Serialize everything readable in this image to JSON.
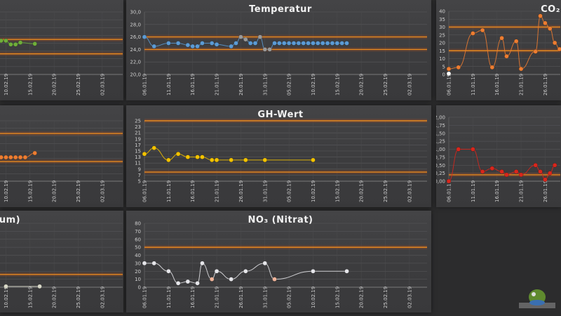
{
  "x_axis": {
    "start": "06.01.19",
    "ticks": [
      "06.01.19",
      "11.01.19",
      "16.01.19",
      "21.01.19",
      "26.01.19",
      "31.01.19",
      "05.02.19",
      "10.02.19",
      "15.02.19",
      "20.02.19",
      "25.02.19",
      "02.03.19"
    ]
  },
  "threshold_color": "#e8891f",
  "chart_data": [
    {
      "id": "left-top",
      "type": "line",
      "title": "",
      "color": "#6fae3a",
      "ylim": [
        20,
        30
      ],
      "thresholds": [
        25.6,
        23.3
      ],
      "points": [
        {
          "x": "09.02.19",
          "y": 25.4
        },
        {
          "x": "10.02.19",
          "y": 25.4
        },
        {
          "x": "11.02.19",
          "y": 24.8
        },
        {
          "x": "12.02.19",
          "y": 24.8
        },
        {
          "x": "13.02.19",
          "y": 25.1
        },
        {
          "x": "16.02.19",
          "y": 24.9
        }
      ]
    },
    {
      "id": "temperatur",
      "type": "line",
      "title": "Temperatur",
      "color": "#5b9bd5",
      "ylim": [
        20,
        30
      ],
      "ystep": 2,
      "decimals": 1,
      "thresholds": [
        26,
        24
      ],
      "points": [
        {
          "x": "06.01.19",
          "y": 26
        },
        {
          "x": "08.01.19",
          "y": 24.5
        },
        {
          "x": "11.01.19",
          "y": 25
        },
        {
          "x": "13.01.19",
          "y": 25
        },
        {
          "x": "15.01.19",
          "y": 24.7
        },
        {
          "x": "16.01.19",
          "y": 24.5
        },
        {
          "x": "17.01.19",
          "y": 24.5
        },
        {
          "x": "18.01.19",
          "y": 25
        },
        {
          "x": "20.01.19",
          "y": 25
        },
        {
          "x": "21.01.19",
          "y": 24.8
        },
        {
          "x": "24.01.19",
          "y": 24.5
        },
        {
          "x": "25.01.19",
          "y": 25
        },
        {
          "x": "26.01.19",
          "y": 26,
          "c": "#9a9a9a"
        },
        {
          "x": "27.01.19",
          "y": 25.6,
          "c": "#9a9a9a"
        },
        {
          "x": "28.01.19",
          "y": 25
        },
        {
          "x": "29.01.19",
          "y": 25
        },
        {
          "x": "30.01.19",
          "y": 26,
          "c": "#9a9a9a"
        },
        {
          "x": "31.01.19",
          "y": 24,
          "c": "#9a9a9a"
        },
        {
          "x": "01.02.19",
          "y": 24,
          "c": "#9a9a9a"
        },
        {
          "x": "02.02.19",
          "y": 25
        },
        {
          "x": "03.02.19",
          "y": 25
        },
        {
          "x": "04.02.19",
          "y": 25
        },
        {
          "x": "05.02.19",
          "y": 25
        },
        {
          "x": "06.02.19",
          "y": 25
        },
        {
          "x": "07.02.19",
          "y": 25
        },
        {
          "x": "08.02.19",
          "y": 25
        },
        {
          "x": "09.02.19",
          "y": 25
        },
        {
          "x": "10.02.19",
          "y": 25
        },
        {
          "x": "11.02.19",
          "y": 25
        },
        {
          "x": "12.02.19",
          "y": 25
        },
        {
          "x": "13.02.19",
          "y": 25
        },
        {
          "x": "14.02.19",
          "y": 25
        },
        {
          "x": "15.02.19",
          "y": 25
        },
        {
          "x": "16.02.19",
          "y": 25
        },
        {
          "x": "17.02.19",
          "y": 25
        }
      ]
    },
    {
      "id": "co2",
      "type": "line",
      "title": "CO₂",
      "color": "#ed7d31",
      "ylim": [
        0,
        40
      ],
      "ystep": 5,
      "decimals": 0,
      "thresholds": [
        30,
        15
      ],
      "points": [
        {
          "x": "06.01.19",
          "y": 3.5
        },
        {
          "x": "08.01.19",
          "y": 4.5
        },
        {
          "x": "11.01.19",
          "y": 26
        },
        {
          "x": "13.01.19",
          "y": 28
        },
        {
          "x": "15.01.19",
          "y": 4.5
        },
        {
          "x": "17.01.19",
          "y": 23
        },
        {
          "x": "18.01.19",
          "y": 11.5
        },
        {
          "x": "20.01.19",
          "y": 21
        },
        {
          "x": "21.01.19",
          "y": 3.5
        },
        {
          "x": "24.01.19",
          "y": 14.5
        },
        {
          "x": "25.01.19",
          "y": 37
        },
        {
          "x": "26.01.19",
          "y": 32.5
        },
        {
          "x": "27.01.19",
          "y": 29
        },
        {
          "x": "28.01.19",
          "y": 20
        },
        {
          "x": "29.01.19",
          "y": 16
        }
      ],
      "extra_points": [
        {
          "x": "06.01.19",
          "y": 0.5,
          "c": "#ffffff"
        }
      ]
    },
    {
      "id": "left-middle",
      "type": "line",
      "title": "",
      "color": "#ed7d31",
      "ylim": [
        5,
        25
      ],
      "thresholds": [
        20.8,
        11.5
      ],
      "points": [
        {
          "x": "09.02.19",
          "y": 12.9
        },
        {
          "x": "10.02.19",
          "y": 12.9
        },
        {
          "x": "11.02.19",
          "y": 12.9
        },
        {
          "x": "12.02.19",
          "y": 12.9
        },
        {
          "x": "13.02.19",
          "y": 12.9
        },
        {
          "x": "14.02.19",
          "y": 12.9
        },
        {
          "x": "16.02.19",
          "y": 14.3
        }
      ]
    },
    {
      "id": "gh-wert",
      "type": "line",
      "title": "GH-Wert",
      "color": "#f2c200",
      "ylim": [
        5,
        25
      ],
      "ystep": 2,
      "decimals": 0,
      "thresholds": [
        25,
        8
      ],
      "points": [
        {
          "x": "06.01.19",
          "y": 14
        },
        {
          "x": "08.01.19",
          "y": 16
        },
        {
          "x": "11.01.19",
          "y": 12
        },
        {
          "x": "13.01.19",
          "y": 14
        },
        {
          "x": "15.01.19",
          "y": 13
        },
        {
          "x": "17.01.19",
          "y": 13
        },
        {
          "x": "18.01.19",
          "y": 13
        },
        {
          "x": "20.01.19",
          "y": 12
        },
        {
          "x": "21.01.19",
          "y": 12
        },
        {
          "x": "24.01.19",
          "y": 12
        },
        {
          "x": "27.01.19",
          "y": 12
        },
        {
          "x": "31.01.19",
          "y": 12
        },
        {
          "x": "10.02.19",
          "y": 12
        }
      ]
    },
    {
      "id": "red-chart",
      "type": "line",
      "title": "",
      "color": "#d9261c",
      "ylim": [
        0,
        2
      ],
      "ystep": 0.25,
      "decimals": 2,
      "thresholds": [
        0.2
      ],
      "points": [
        {
          "x": "06.01.19",
          "y": 0
        },
        {
          "x": "08.01.19",
          "y": 1
        },
        {
          "x": "11.01.19",
          "y": 1
        },
        {
          "x": "13.01.19",
          "y": 0.3
        },
        {
          "x": "15.01.19",
          "y": 0.4
        },
        {
          "x": "17.01.19",
          "y": 0.3
        },
        {
          "x": "18.01.19",
          "y": 0.2
        },
        {
          "x": "20.01.19",
          "y": 0.3
        },
        {
          "x": "21.01.19",
          "y": 0.2
        },
        {
          "x": "24.01.19",
          "y": 0.5
        },
        {
          "x": "25.01.19",
          "y": 0.3
        },
        {
          "x": "26.01.19",
          "y": 0.05
        },
        {
          "x": "27.01.19",
          "y": 0.25
        },
        {
          "x": "28.01.19",
          "y": 0.5
        }
      ]
    },
    {
      "id": "left-bottom",
      "type": "line",
      "title": "um)",
      "color": "#d8d8c8",
      "ylim": [
        0,
        80
      ],
      "thresholds": [
        16
      ],
      "points": [
        {
          "x": "10.02.19",
          "y": 1
        },
        {
          "x": "17.02.19",
          "y": 1
        }
      ]
    },
    {
      "id": "no3",
      "type": "line",
      "title": "NO₃ (Nitrat)",
      "color": "#e6e6ea",
      "ylim": [
        0,
        80
      ],
      "ystep": 10,
      "decimals": 0,
      "thresholds": [
        50
      ],
      "points": [
        {
          "x": "06.01.19",
          "y": 30
        },
        {
          "x": "08.01.19",
          "y": 30
        },
        {
          "x": "11.01.19",
          "y": 20
        },
        {
          "x": "13.01.19",
          "y": 5
        },
        {
          "x": "15.01.19",
          "y": 7
        },
        {
          "x": "17.01.19",
          "y": 5
        },
        {
          "x": "18.01.19",
          "y": 30
        },
        {
          "x": "20.01.19",
          "y": 10,
          "c": "#f0b49a"
        },
        {
          "x": "21.01.19",
          "y": 20
        },
        {
          "x": "24.01.19",
          "y": 10
        },
        {
          "x": "27.01.19",
          "y": 20
        },
        {
          "x": "31.01.19",
          "y": 30
        },
        {
          "x": "02.02.19",
          "y": 10,
          "c": "#f0b49a"
        },
        {
          "x": "10.02.19",
          "y": 20
        },
        {
          "x": "17.02.19",
          "y": 20
        }
      ]
    }
  ]
}
